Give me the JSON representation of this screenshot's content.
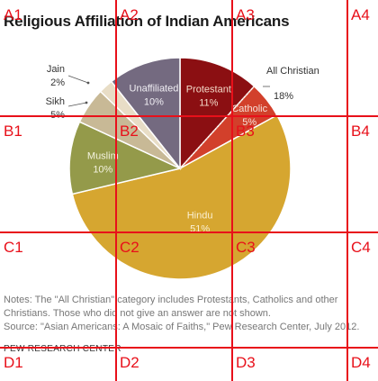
{
  "title": "Religious Affiliation of Indian Americans",
  "chart_data": {
    "type": "pie",
    "title": "Religious Affiliation of Indian Americans",
    "unit": "%",
    "slices": [
      {
        "label": "Protestant",
        "value_label": "11%",
        "value": 11,
        "color": "#8b0f12",
        "label_color": "#f3d9c8"
      },
      {
        "label": "Catholic",
        "value_label": "5%",
        "value": 5,
        "color": "#d2402b",
        "label_color": "#f6e0d8"
      },
      {
        "label": "Hindu",
        "value_label": "51%",
        "value": 51,
        "color": "#d6a630",
        "label_color": "#fbf0d2"
      },
      {
        "label": "Muslim",
        "value_label": "10%",
        "value": 10,
        "color": "#949a4a",
        "label_color": "#f4f3df"
      },
      {
        "label": "Sikh",
        "value_label": "5%",
        "value": 5,
        "color": "#c8b996",
        "label_color": "#333333"
      },
      {
        "label": "Jain",
        "value_label": "2%",
        "value": 2,
        "color": "#e8ddc6",
        "label_color": "#333333"
      },
      {
        "label": "Unaffiliated",
        "value_label": "10%",
        "value": 10,
        "color": "#746a80",
        "label_color": "#f1eff4"
      }
    ],
    "group_annotation": {
      "label": "All Christian",
      "value_label": "18%"
    }
  },
  "notes": {
    "line1": "Notes: The \"All Christian\" category includes Protestants, Catholics and other",
    "line2": "Christians. Those who did not give an answer are not shown.",
    "line3": "Source: \"Asian Americans: A Mosaic of Faiths,\" Pew Research Center, July 2012.",
    "org": "PEW RESEARCH CENTER"
  },
  "grid_overlay": {
    "color": "#e8101a",
    "labels": [
      "A1",
      "A2",
      "A3",
      "A4",
      "B1",
      "B2",
      "B3",
      "B4",
      "C1",
      "C2",
      "C3",
      "C4",
      "D1",
      "D2",
      "D3",
      "D4"
    ]
  }
}
